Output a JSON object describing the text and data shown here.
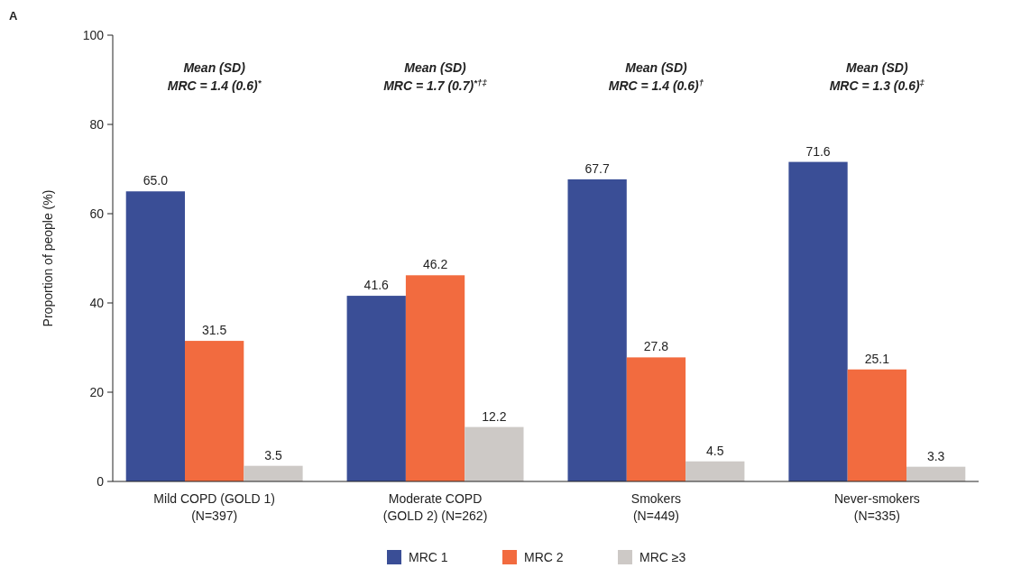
{
  "chart_data": {
    "type": "bar",
    "ylabel": "Proportion of people (%)",
    "categories": [
      "Mild COPD (GOLD 1)\n(N=397)",
      "Moderate COPD\n(GOLD 2) (N=262)",
      "Smokers\n(N=449)",
      "Never-smokers\n(N=335)"
    ],
    "series": [
      {
        "name": "MRC 1",
        "color": "#3a4e96",
        "values": [
          65.0,
          41.6,
          67.7,
          71.6
        ],
        "value_labels": [
          "65.0",
          "41.6",
          "67.7",
          "71.6"
        ]
      },
      {
        "name": "MRC 2",
        "color": "#f26b3f",
        "values": [
          31.5,
          46.2,
          27.8,
          25.1
        ],
        "value_labels": [
          "31.5",
          "46.2",
          "27.8",
          "25.1"
        ]
      },
      {
        "name": "MRC ≥3",
        "color": "#cdc9c6",
        "values": [
          3.5,
          12.2,
          4.5,
          3.3
        ],
        "value_labels": [
          "3.5",
          "12.2",
          "4.5",
          "3.3"
        ]
      }
    ],
    "ylim": [
      0,
      100
    ],
    "yticks": [
      0,
      20,
      40,
      60,
      80,
      100
    ],
    "legend": "bottom",
    "grid": false,
    "annotations": [
      "A",
      "Mean (SD)\nMRC = 1.4 (0.6)$^{*}$",
      "Mean (SD)\nMRC = 1.7 (0.7)$^{*†‡}$",
      "Mean (SD)\nMRC = 1.4 (0.6)$^{†}$",
      "Mean (SD)\nMRC = 1.3 (0.6)$^{‡}$"
    ]
  }
}
